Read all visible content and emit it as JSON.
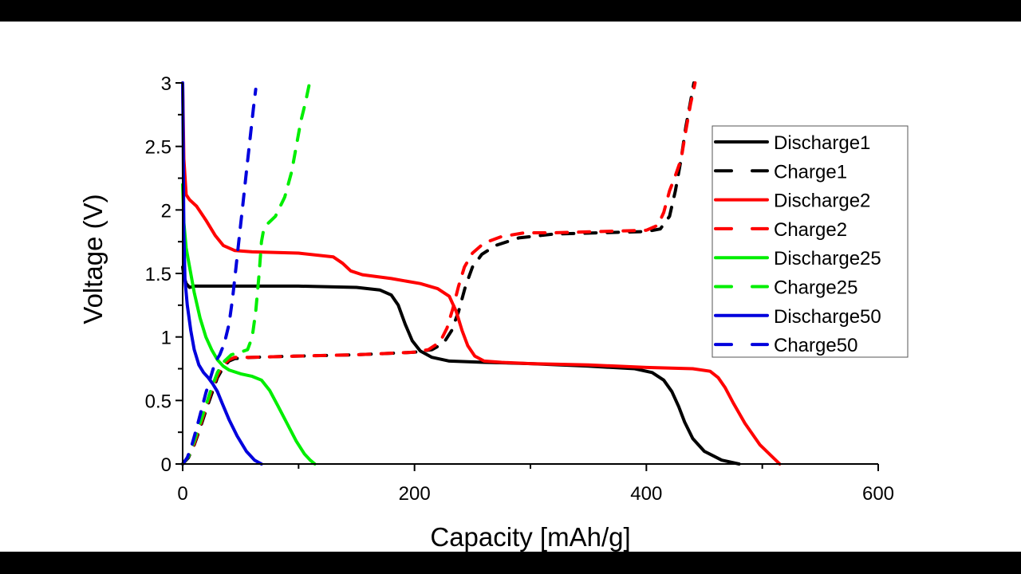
{
  "chart_data": {
    "type": "line",
    "title": "",
    "xlabel": "Capacity [mAh/g]",
    "ylabel": "Voltage (V)",
    "xlim": [
      0,
      600
    ],
    "ylim": [
      0,
      3
    ],
    "xticks": [
      0,
      200,
      400,
      600
    ],
    "xtick_labels": [
      "0",
      "200",
      "400",
      "600"
    ],
    "yticks": [
      0,
      0.5,
      1,
      1.5,
      2,
      2.5,
      3
    ],
    "ytick_labels": [
      "0",
      "0.5",
      "1",
      "1.5",
      "2",
      "2.5",
      "3"
    ],
    "grid": false,
    "legend_position": "right",
    "series": [
      {
        "name": "Discharge1",
        "color": "#000000",
        "style": "solid",
        "x": [
          0,
          1,
          3,
          6,
          10,
          50,
          100,
          150,
          170,
          180,
          186,
          192,
          198,
          205,
          215,
          230,
          260,
          300,
          350,
          390,
          405,
          415,
          422,
          428,
          433,
          440,
          450,
          465,
          480
        ],
        "y": [
          1.55,
          1.48,
          1.42,
          1.39,
          1.4,
          1.4,
          1.4,
          1.39,
          1.37,
          1.33,
          1.25,
          1.1,
          0.97,
          0.89,
          0.84,
          0.81,
          0.8,
          0.79,
          0.77,
          0.75,
          0.72,
          0.66,
          0.57,
          0.45,
          0.33,
          0.2,
          0.1,
          0.03,
          0
        ]
      },
      {
        "name": "Charge1",
        "color": "#000000",
        "style": "dash",
        "x": [
          0,
          5,
          10,
          15,
          20,
          25,
          30,
          35,
          40,
          45,
          60,
          100,
          150,
          200,
          215,
          225,
          232,
          238,
          244,
          250,
          258,
          270,
          290,
          320,
          360,
          400,
          412,
          420,
          425,
          430,
          434,
          438,
          441
        ],
        "y": [
          0,
          0.05,
          0.15,
          0.28,
          0.42,
          0.55,
          0.68,
          0.76,
          0.81,
          0.83,
          0.84,
          0.85,
          0.86,
          0.88,
          0.9,
          0.95,
          1.05,
          1.2,
          1.4,
          1.55,
          1.65,
          1.72,
          1.78,
          1.81,
          1.82,
          1.83,
          1.85,
          1.95,
          2.15,
          2.4,
          2.65,
          2.85,
          3.0
        ]
      },
      {
        "name": "Discharge2",
        "color": "#ff0000",
        "style": "solid",
        "x": [
          0,
          1,
          3,
          6,
          12,
          20,
          28,
          35,
          45,
          60,
          100,
          130,
          138,
          145,
          155,
          180,
          205,
          220,
          230,
          236,
          241,
          246,
          252,
          260,
          275,
          300,
          350,
          400,
          440,
          455,
          462,
          468,
          475,
          485,
          498,
          515
        ],
        "y": [
          3.0,
          2.4,
          2.12,
          2.08,
          2.03,
          1.92,
          1.8,
          1.72,
          1.68,
          1.67,
          1.66,
          1.63,
          1.58,
          1.52,
          1.49,
          1.46,
          1.42,
          1.38,
          1.32,
          1.2,
          1.05,
          0.93,
          0.85,
          0.81,
          0.8,
          0.79,
          0.78,
          0.76,
          0.75,
          0.73,
          0.68,
          0.6,
          0.48,
          0.32,
          0.15,
          0
        ]
      },
      {
        "name": "Charge2",
        "color": "#ff0000",
        "style": "dash",
        "x": [
          0,
          5,
          10,
          15,
          20,
          25,
          30,
          35,
          40,
          45,
          60,
          100,
          150,
          200,
          212,
          222,
          228,
          233,
          238,
          243,
          250,
          260,
          275,
          295,
          320,
          360,
          400,
          410,
          415,
          420,
          425,
          430,
          434,
          438,
          442
        ],
        "y": [
          0,
          0.06,
          0.16,
          0.3,
          0.44,
          0.58,
          0.7,
          0.78,
          0.82,
          0.84,
          0.84,
          0.85,
          0.86,
          0.88,
          0.9,
          0.96,
          1.07,
          1.22,
          1.4,
          1.55,
          1.66,
          1.74,
          1.79,
          1.82,
          1.82,
          1.83,
          1.84,
          1.88,
          1.98,
          2.15,
          2.27,
          2.4,
          2.62,
          2.83,
          3.0
        ]
      },
      {
        "name": "Discharge25",
        "color": "#00ee00",
        "style": "solid",
        "x": [
          0,
          1,
          3,
          6,
          10,
          15,
          20,
          25,
          30,
          35,
          40,
          50,
          60,
          68,
          75,
          82,
          90,
          98,
          105,
          110,
          114
        ],
        "y": [
          2.2,
          1.9,
          1.7,
          1.55,
          1.35,
          1.15,
          1.0,
          0.9,
          0.82,
          0.77,
          0.74,
          0.71,
          0.69,
          0.66,
          0.58,
          0.46,
          0.32,
          0.18,
          0.08,
          0.03,
          0
        ]
      },
      {
        "name": "Charge25",
        "color": "#00ee00",
        "style": "dash",
        "x": [
          0,
          5,
          10,
          15,
          20,
          25,
          30,
          35,
          42,
          50,
          56,
          60,
          63,
          66,
          68,
          70,
          72,
          80,
          88,
          94,
          98,
          102,
          106,
          109
        ],
        "y": [
          0,
          0.06,
          0.18,
          0.32,
          0.46,
          0.6,
          0.72,
          0.8,
          0.86,
          0.88,
          0.9,
          1.0,
          1.2,
          1.5,
          1.75,
          1.85,
          1.88,
          1.95,
          2.1,
          2.3,
          2.5,
          2.7,
          2.85,
          2.98
        ]
      },
      {
        "name": "Discharge50",
        "color": "#0000dd",
        "style": "solid",
        "x": [
          0,
          0.5,
          1,
          2,
          4,
          7,
          10,
          14,
          18,
          22,
          26,
          30,
          34,
          40,
          47,
          55,
          62,
          68
        ],
        "y": [
          3.0,
          2.5,
          1.8,
          1.45,
          1.25,
          1.05,
          0.9,
          0.78,
          0.72,
          0.68,
          0.63,
          0.57,
          0.48,
          0.35,
          0.22,
          0.1,
          0.03,
          0
        ]
      },
      {
        "name": "Charge50",
        "color": "#0000dd",
        "style": "dash",
        "x": [
          0,
          4,
          8,
          12,
          16,
          20,
          24,
          28,
          32,
          36,
          40,
          43,
          46,
          49,
          52,
          55,
          58,
          61,
          63
        ],
        "y": [
          0,
          0.05,
          0.15,
          0.28,
          0.42,
          0.56,
          0.68,
          0.8,
          0.86,
          0.95,
          1.1,
          1.3,
          1.55,
          1.8,
          2.05,
          2.3,
          2.55,
          2.8,
          2.95
        ]
      }
    ]
  }
}
